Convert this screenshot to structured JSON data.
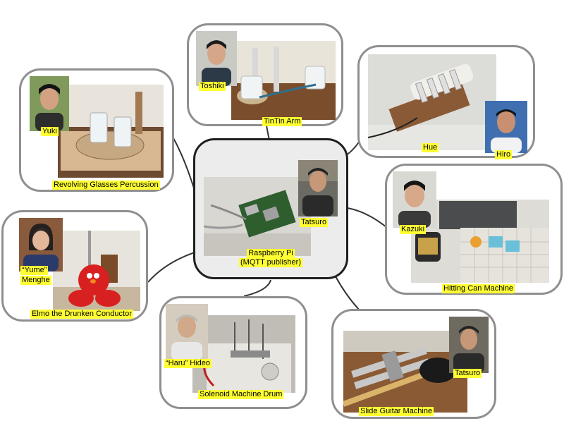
{
  "hub": {
    "caption_line1": "Raspberry Pi",
    "caption_line2": "(MQTT publisher)",
    "person": "Tatsuro"
  },
  "nodes": {
    "tintin": {
      "project": "TinTin Arm",
      "person": "Toshiki"
    },
    "hue": {
      "project": "Hue",
      "person": "Hiro"
    },
    "revolving": {
      "project": "Revolving Glasses Percussion",
      "person": "Yuki"
    },
    "hitting": {
      "project": "Hitting Can Machine",
      "person": "Kazuki"
    },
    "elmo": {
      "project": "Elmo the Drunken Conductor",
      "person_line1": "“Yume”",
      "person_line2": "Menghe"
    },
    "solenoid": {
      "project": "Solenoid Machine Drum",
      "person": "“Haru” Hideo"
    },
    "slide": {
      "project": "Slide Guitar Machine",
      "person": "Tatsuro"
    }
  }
}
